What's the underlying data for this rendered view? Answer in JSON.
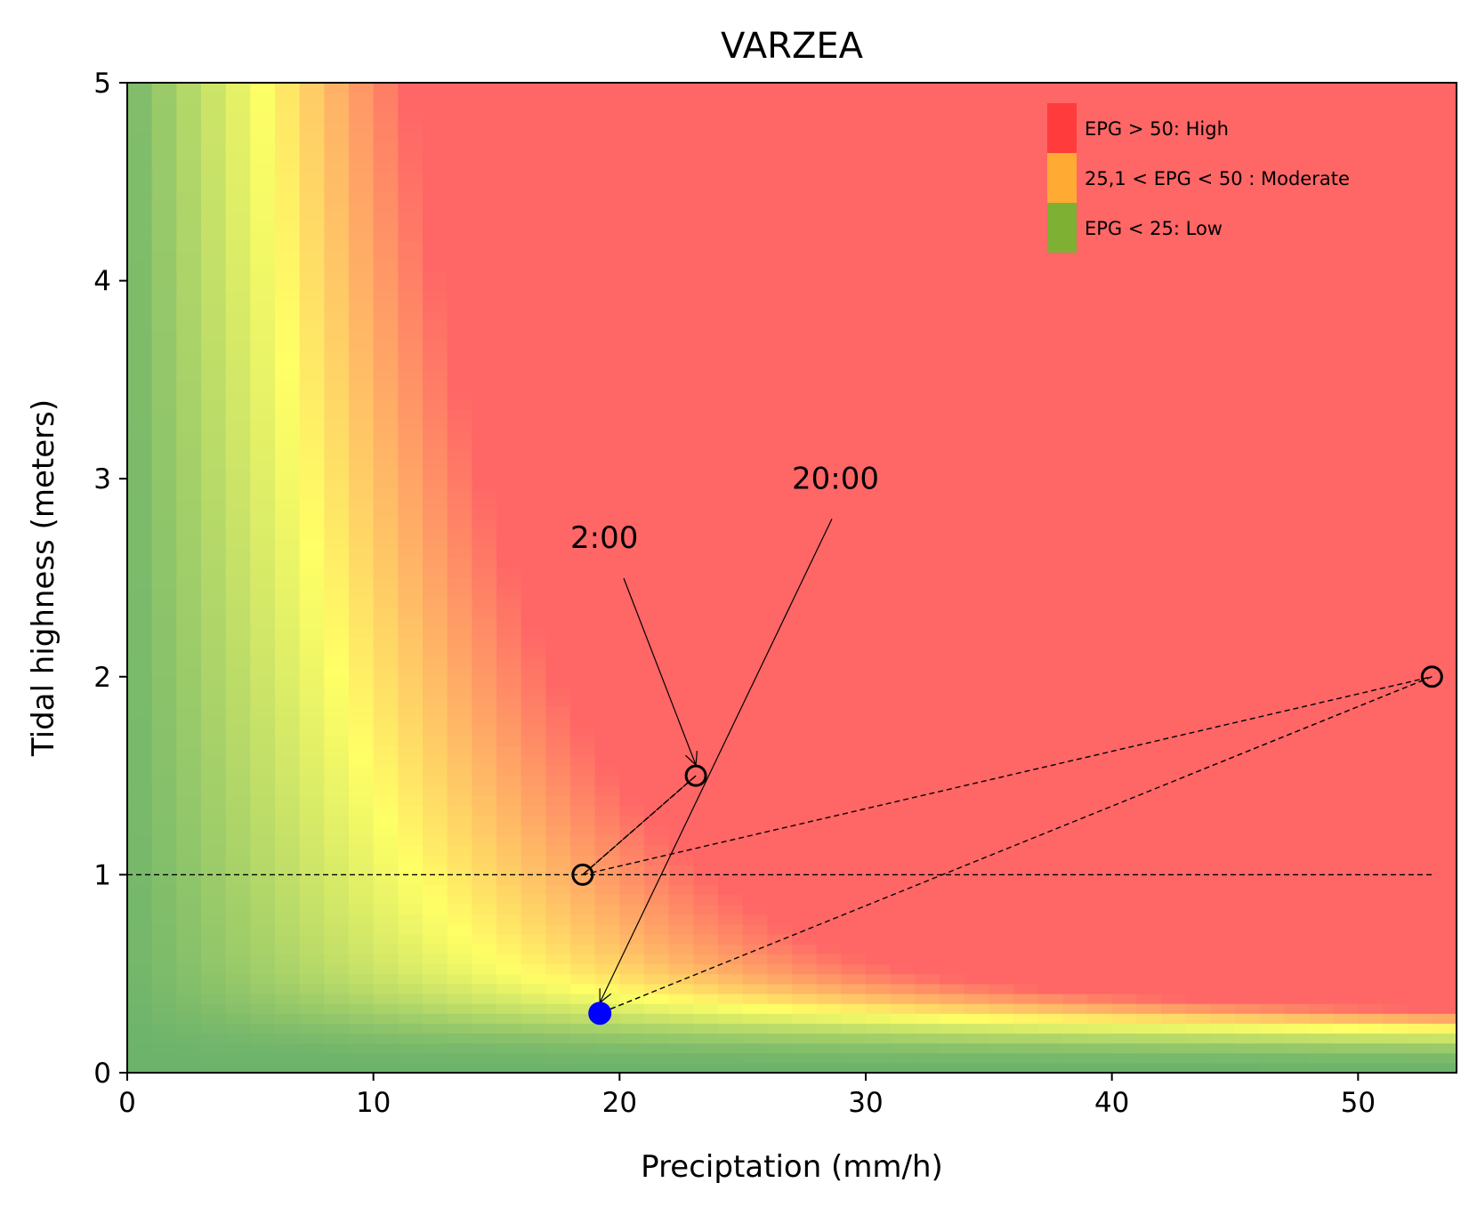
{
  "chart_data": {
    "type": "heatmap",
    "title": "VARZEA",
    "xlabel": "Preciptation (mm/h)",
    "ylabel": "Tidal highness (meters)",
    "xlim": [
      0,
      54
    ],
    "ylim": [
      0,
      5
    ],
    "x_ticks": [
      "0",
      "10",
      "20",
      "30",
      "40",
      "50"
    ],
    "y_ticks": [
      "0",
      "1",
      "2",
      "3",
      "4",
      "5"
    ],
    "x_tick_values": [
      0,
      10,
      20,
      30,
      40,
      50
    ],
    "y_tick_values": [
      0,
      1,
      2,
      3,
      4,
      5
    ],
    "colors": {
      "low": "#6db36b",
      "yellow": "#ffff66",
      "high": "#ff6666"
    },
    "legend": {
      "position": "top-right",
      "entries": [
        {
          "label": "EPG > 50: High",
          "color": "#ff3b3b"
        },
        {
          "label": "25,1 < EPG < 50 : Moderate",
          "color": "#ffaa33"
        },
        {
          "label": "EPG < 25: Low",
          "color": "#7db033"
        }
      ]
    },
    "reference_line": {
      "y": 1,
      "x_range": [
        0,
        53
      ]
    },
    "trajectory": [
      {
        "x": 18.5,
        "y": 1.0
      },
      {
        "x": 23.1,
        "y": 1.5
      },
      {
        "x": 18.5,
        "y": 1.0
      },
      {
        "x": 53.0,
        "y": 2.0
      },
      {
        "x": 19.2,
        "y": 0.3
      }
    ],
    "points": [
      {
        "x": 18.5,
        "y": 1.0,
        "style": "open"
      },
      {
        "x": 23.1,
        "y": 1.5,
        "style": "open"
      },
      {
        "x": 53.0,
        "y": 2.0,
        "style": "open"
      },
      {
        "x": 19.2,
        "y": 0.3,
        "style": "filled",
        "color": "#0000ff"
      }
    ],
    "annotations": [
      {
        "text": "2:00",
        "text_x": 18,
        "text_y": 2.65,
        "target_x": 23.1,
        "target_y": 1.5
      },
      {
        "text": "20:00",
        "text_x": 27,
        "text_y": 2.95,
        "target_x": 19.2,
        "target_y": 0.3
      }
    ]
  }
}
